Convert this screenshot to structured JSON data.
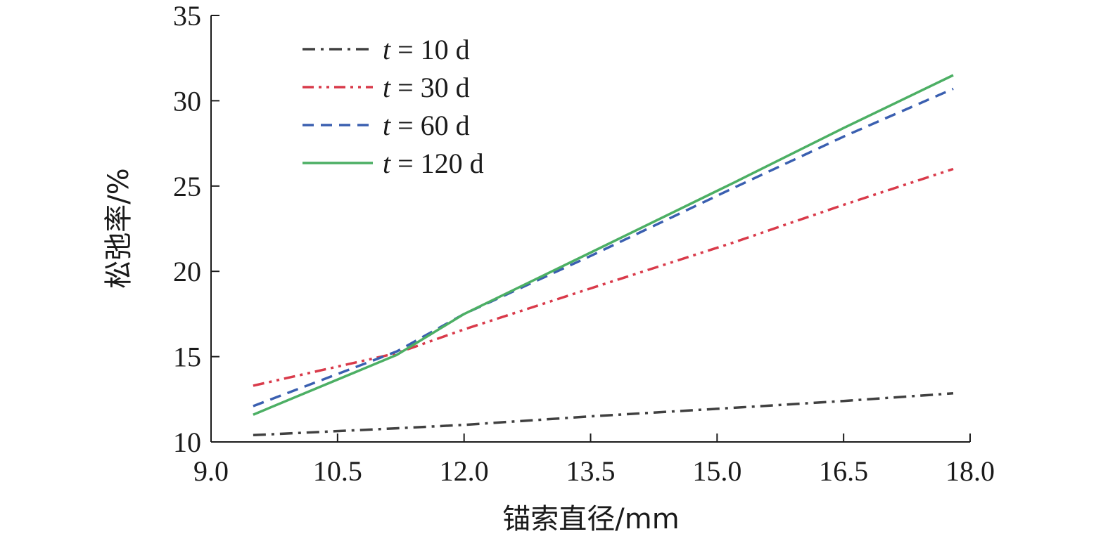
{
  "chart_data": {
    "type": "line",
    "title": "",
    "xlabel": "锚索直径/mm",
    "ylabel": "松弛率/%",
    "xlim": [
      9.0,
      18.0
    ],
    "ylim": [
      10,
      35
    ],
    "x_ticks": [
      "9.0",
      "10.5",
      "12.0",
      "13.5",
      "15.0",
      "16.5",
      "18.0"
    ],
    "y_ticks": [
      "10",
      "15",
      "20",
      "25",
      "30",
      "35"
    ],
    "grid": false,
    "legend_position": "top-left",
    "x": [
      9.5,
      11.2,
      12.0,
      13.5,
      15.2,
      16.5,
      17.8
    ],
    "series": [
      {
        "name_var": "t",
        "name_rest": " = 10 d",
        "color": "#404040",
        "dash": "18,8,4,8",
        "values": [
          10.4,
          10.8,
          11.0,
          11.5,
          12.0,
          12.4,
          12.85
        ]
      },
      {
        "name_var": "t",
        "name_rest": " = 30 d",
        "color": "#d93a4a",
        "dash": "16,7,4,7,4,7",
        "values": [
          13.3,
          15.2,
          16.6,
          19.0,
          21.7,
          23.9,
          26.0
        ]
      },
      {
        "name_var": "t",
        "name_rest": " = 60 d",
        "color": "#3a5fb0",
        "dash": "16,10",
        "values": [
          12.1,
          15.3,
          17.5,
          20.9,
          24.9,
          27.9,
          30.7
        ]
      },
      {
        "name_var": "t",
        "name_rest": " = 120 d",
        "color": "#4caf64",
        "dash": "",
        "values": [
          11.6,
          15.1,
          17.5,
          21.1,
          25.2,
          28.4,
          31.5
        ]
      }
    ]
  }
}
